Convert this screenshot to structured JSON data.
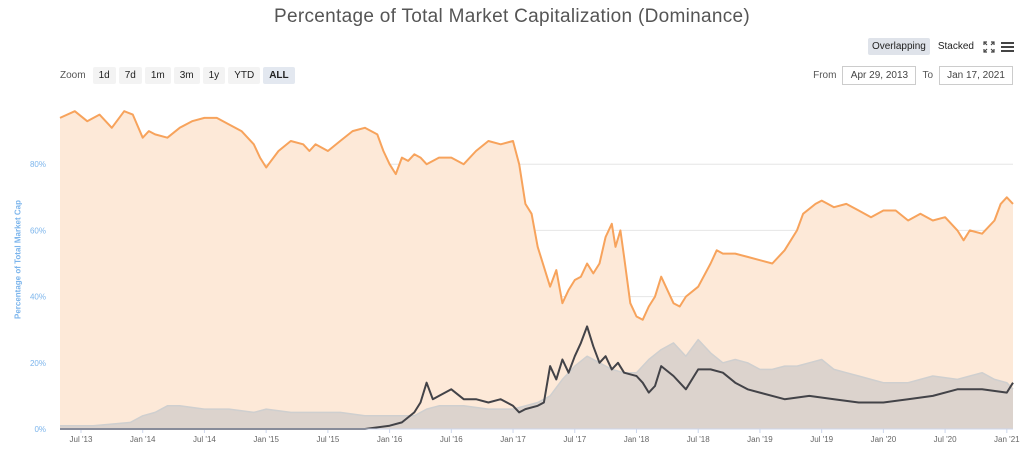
{
  "title": "Percentage of Total Market Capitalization (Dominance)",
  "view_buttons": {
    "overlapping": "Overlapping",
    "stacked": "Stacked"
  },
  "zoom": {
    "label": "Zoom",
    "buttons": [
      "1d",
      "7d",
      "1m",
      "3m",
      "1y",
      "YTD",
      "ALL"
    ],
    "active": "ALL"
  },
  "range": {
    "from_label": "From",
    "from_value": "Apr 29, 2013",
    "to_label": "To",
    "to_value": "Jan 17, 2021"
  },
  "icons": [
    "fullscreen-icon",
    "menu-icon"
  ],
  "chart_data": {
    "type": "area",
    "title": "Percentage of Total Market Capitalization (Dominance)",
    "ylabel": "Percentage of Total Market Cap",
    "ylim": [
      0,
      100
    ],
    "y_ticks": [
      "0%",
      "20%",
      "40%",
      "60%",
      "80%"
    ],
    "x_ticks": [
      "Jul '13",
      "Jan '14",
      "Jul '14",
      "Jan '15",
      "Jul '15",
      "Jan '16",
      "Jul '16",
      "Jan '17",
      "Jul '17",
      "Jan '18",
      "Jul '18",
      "Jan '19",
      "Jul '19",
      "Jan '20",
      "Jul '20",
      "Jan '21"
    ],
    "grid": true,
    "colors": {
      "s1": "#f7a35c",
      "s1_fill": "#fde9d8",
      "s2": "#434348",
      "s3": "#cfcfcf",
      "s3_fill": "#dcd3cd",
      "axis": "#7cb5ec"
    },
    "series": [
      {
        "key": "s1",
        "x": [
          2013.33,
          2013.45,
          2013.55,
          2013.65,
          2013.75,
          2013.85,
          2013.92,
          2014.0,
          2014.05,
          2014.1,
          2014.2,
          2014.3,
          2014.4,
          2014.5,
          2014.6,
          2014.7,
          2014.8,
          2014.9,
          2014.95,
          2015.0,
          2015.02,
          2015.1,
          2015.2,
          2015.3,
          2015.35,
          2015.4,
          2015.5,
          2015.6,
          2015.7,
          2015.8,
          2015.9,
          2015.95,
          2016.0,
          2016.05,
          2016.1,
          2016.15,
          2016.2,
          2016.25,
          2016.3,
          2016.4,
          2016.5,
          2016.6,
          2016.7,
          2016.8,
          2016.9,
          2017.0,
          2017.05,
          2017.1,
          2017.15,
          2017.2,
          2017.3,
          2017.35,
          2017.4,
          2017.45,
          2017.5,
          2017.55,
          2017.6,
          2017.65,
          2017.7,
          2017.75,
          2017.8,
          2017.83,
          2017.87,
          2017.9,
          2017.95,
          2018.0,
          2018.05,
          2018.1,
          2018.15,
          2018.2,
          2018.3,
          2018.35,
          2018.4,
          2018.5,
          2018.6,
          2018.65,
          2018.7,
          2018.8,
          2018.9,
          2019.0,
          2019.1,
          2019.2,
          2019.3,
          2019.35,
          2019.45,
          2019.5,
          2019.55,
          2019.6,
          2019.7,
          2019.8,
          2019.9,
          2020.0,
          2020.1,
          2020.2,
          2020.3,
          2020.4,
          2020.5,
          2020.6,
          2020.65,
          2020.7,
          2020.8,
          2020.9,
          2020.95,
          2021.0,
          2021.05
        ],
        "values": [
          94,
          96,
          93,
          95,
          91,
          96,
          95,
          88,
          90,
          89,
          88,
          91,
          93,
          94,
          94,
          92,
          90,
          86,
          82,
          79,
          80,
          84,
          87,
          86,
          84,
          86,
          84,
          87,
          90,
          91,
          89,
          84,
          80,
          77,
          82,
          81,
          83,
          82,
          80,
          82,
          82,
          80,
          84,
          87,
          86,
          87,
          80,
          68,
          65,
          55,
          43,
          48,
          38,
          42,
          45,
          46,
          50,
          47,
          50,
          58,
          62,
          55,
          60,
          52,
          38,
          34,
          33,
          37,
          40,
          46,
          38,
          37,
          40,
          43,
          50,
          54,
          53,
          53,
          52,
          51,
          50,
          54,
          60,
          65,
          68,
          69,
          68,
          67,
          68,
          66,
          64,
          66,
          66,
          63,
          65,
          63,
          64,
          60,
          57,
          60,
          59,
          63,
          68,
          70,
          68
        ]
      },
      {
        "key": "s3",
        "x": [
          2013.33,
          2013.6,
          2013.9,
          2014.0,
          2014.1,
          2014.2,
          2014.3,
          2014.5,
          2014.7,
          2014.9,
          2015.0,
          2015.2,
          2015.4,
          2015.6,
          2015.8,
          2016.0,
          2016.2,
          2016.3,
          2016.4,
          2016.6,
          2016.8,
          2017.0,
          2017.1,
          2017.2,
          2017.3,
          2017.4,
          2017.5,
          2017.6,
          2017.7,
          2017.8,
          2017.9,
          2018.0,
          2018.1,
          2018.2,
          2018.3,
          2018.4,
          2018.5,
          2018.6,
          2018.7,
          2018.8,
          2018.9,
          2019.0,
          2019.1,
          2019.2,
          2019.3,
          2019.4,
          2019.5,
          2019.6,
          2019.7,
          2019.8,
          2019.9,
          2020.0,
          2020.2,
          2020.4,
          2020.6,
          2020.8,
          2020.9,
          2021.0,
          2021.05
        ],
        "values": [
          1,
          1,
          2,
          4,
          5,
          7,
          7,
          6,
          6,
          5,
          6,
          5,
          5,
          5,
          4,
          4,
          4,
          6,
          7,
          7,
          6,
          6,
          7,
          8,
          10,
          15,
          19,
          22,
          20,
          18,
          17,
          17,
          21,
          24,
          26,
          22,
          27,
          23,
          20,
          21,
          20,
          18,
          18,
          19,
          19,
          20,
          21,
          18,
          17,
          16,
          15,
          14,
          14,
          16,
          15,
          17,
          15,
          14,
          12
        ]
      },
      {
        "key": "s2",
        "x": [
          2013.33,
          2013.8,
          2014.2,
          2014.6,
          2015.0,
          2015.4,
          2015.8,
          2016.0,
          2016.1,
          2016.2,
          2016.25,
          2016.3,
          2016.35,
          2016.4,
          2016.5,
          2016.6,
          2016.7,
          2016.8,
          2016.9,
          2017.0,
          2017.05,
          2017.1,
          2017.2,
          2017.25,
          2017.3,
          2017.35,
          2017.4,
          2017.45,
          2017.5,
          2017.55,
          2017.6,
          2017.65,
          2017.7,
          2017.75,
          2017.8,
          2017.85,
          2017.9,
          2018.0,
          2018.05,
          2018.1,
          2018.15,
          2018.2,
          2018.3,
          2018.4,
          2018.5,
          2018.6,
          2018.7,
          2018.8,
          2018.9,
          2019.0,
          2019.2,
          2019.4,
          2019.6,
          2019.8,
          2020.0,
          2020.2,
          2020.4,
          2020.6,
          2020.8,
          2021.0,
          2021.05
        ],
        "values": [
          0,
          0,
          0,
          0,
          0,
          0,
          0,
          1,
          2,
          5,
          8,
          14,
          9,
          10,
          12,
          9,
          9,
          8,
          9,
          7,
          5,
          6,
          7,
          8,
          19,
          15,
          21,
          17,
          22,
          26,
          31,
          25,
          20,
          22,
          18,
          20,
          17,
          16,
          14,
          11,
          13,
          19,
          16,
          12,
          18,
          18,
          17,
          14,
          12,
          11,
          9,
          10,
          9,
          8,
          8,
          9,
          10,
          12,
          12,
          11,
          14
        ]
      }
    ]
  }
}
